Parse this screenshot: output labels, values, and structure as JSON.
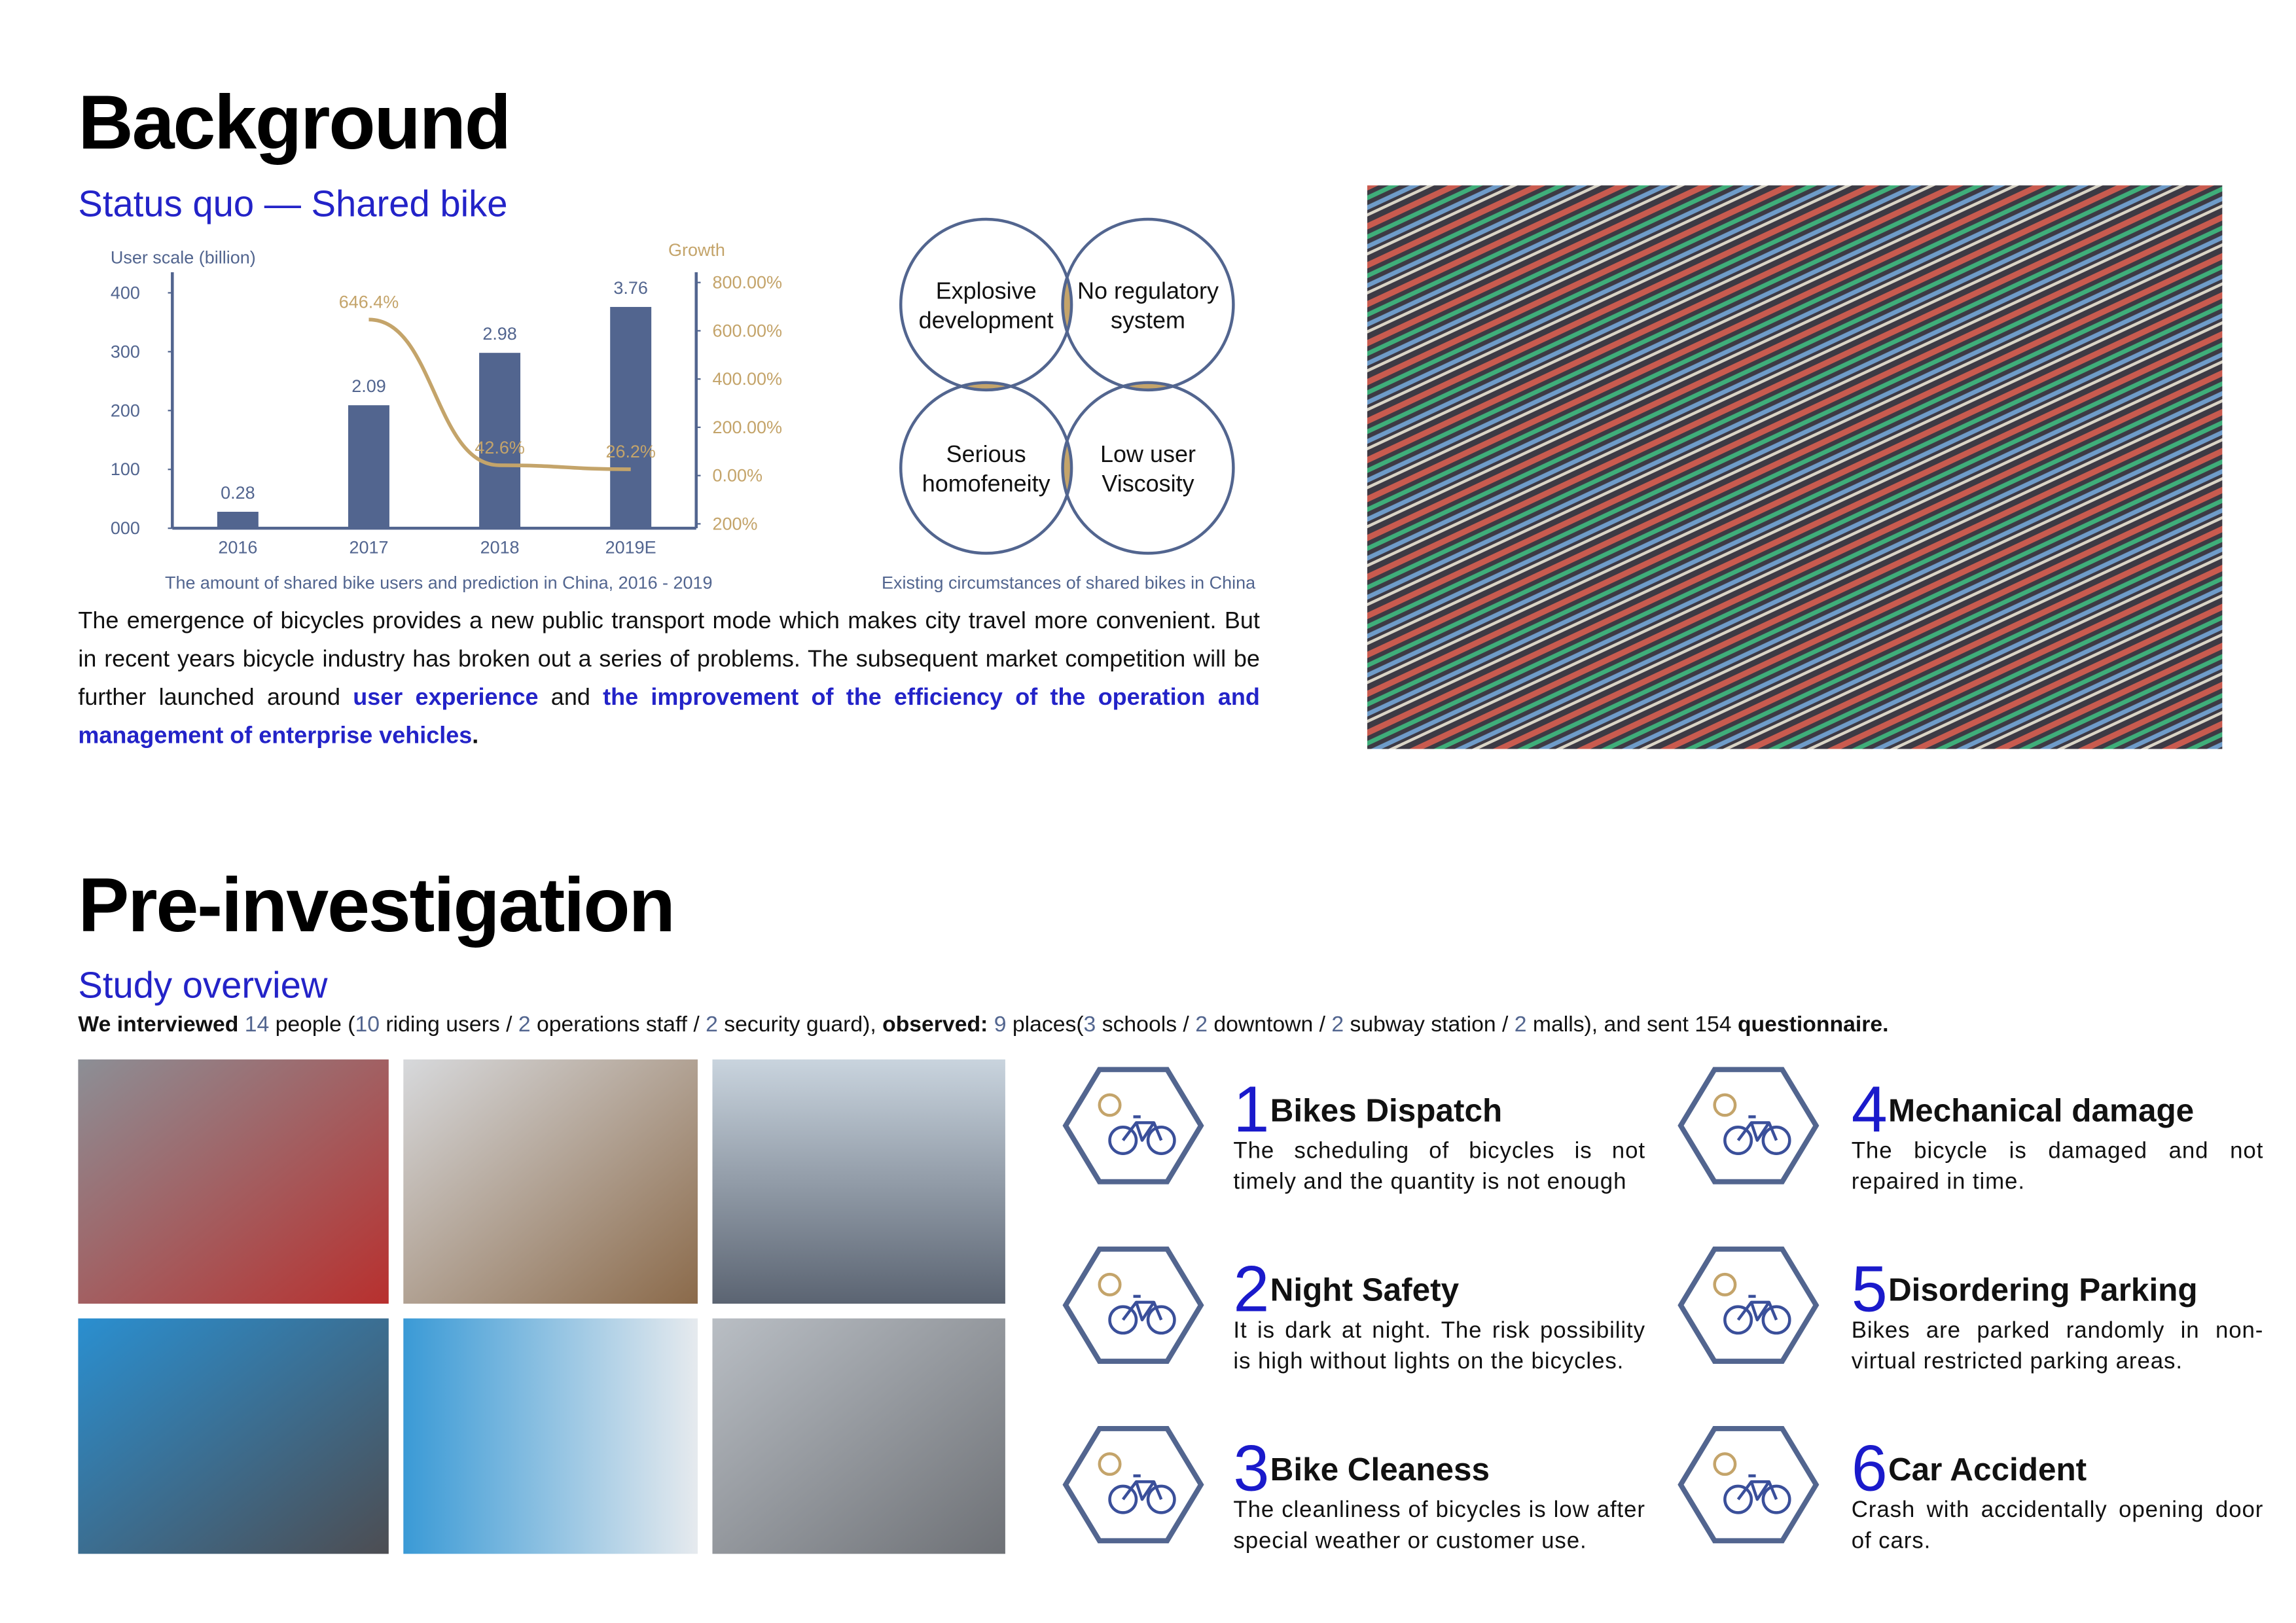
{
  "background": {
    "title": "Background",
    "subtitle": "Status quo — Shared bike",
    "chart": {
      "type": "bar",
      "y_label": "User scale (billion)",
      "y2_label": "Growth",
      "categories": [
        "2016",
        "2017",
        "2018",
        "2019E"
      ],
      "values": [
        28,
        209,
        298,
        376
      ],
      "value_labels": [
        "0.28",
        "2.09",
        "2.98",
        "3.76"
      ],
      "color": "#52658f",
      "ylim": [
        0,
        400
      ],
      "yticks": [
        {
          "value": 0,
          "label": "000"
        },
        100,
        200,
        300,
        400
      ],
      "line": {
        "axis": "y2",
        "color": "#c4a46a",
        "values": [
          null,
          646.4,
          42.6,
          26.2
        ],
        "value_labels": [
          null,
          "646.4%",
          "42.6%",
          "26.2%"
        ]
      },
      "y2lim": [
        -200,
        800
      ],
      "y2ticks": [
        {
          "value": -200,
          "label": "200%"
        },
        {
          "value": 0,
          "label": "0.00%"
        },
        {
          "value": 200,
          "label": "200.00%"
        },
        {
          "value": 400,
          "label": "400.00%"
        },
        {
          "value": 600,
          "label": "600.00%"
        },
        {
          "value": 800,
          "label": "800.00%"
        }
      ],
      "caption": "The amount of shared bike users and prediction in China, 2016 - 2019"
    },
    "venn": {
      "labels": [
        [
          "Explosive",
          "development"
        ],
        [
          "No regulatory",
          "system"
        ],
        [
          "Serious",
          "homofeneity"
        ],
        [
          "Low user",
          "Viscosity"
        ]
      ],
      "caption": "Existing circumstances of shared bikes in China"
    },
    "paragraph": [
      "The emergence of bicycles provides a new public transport mode which makes city travel more convenient. But in recent years bicycle industry has broken out a series of problems. The subsequent market competition will be further launched around",
      "user experience",
      "and",
      "the improvement of the efficiency of the operation and management of enterprise vehicles",
      "."
    ]
  },
  "pre_investigation": {
    "title": "Pre-investigation",
    "subtitle": "Study overview",
    "summary": [
      "We interviewed",
      "14",
      "people (",
      "10",
      "riding users /",
      "2",
      "operations staff /",
      "2",
      "security guard),",
      "observed:",
      "9",
      "places(",
      "3",
      "schools /",
      "2",
      "downtown /",
      "2",
      "subway station /",
      "2",
      "malls), and sent 154",
      "questionnaire."
    ],
    "issues": [
      {
        "number": 1,
        "title": "Bikes Dispatch",
        "text": "The scheduling of bicycles is not timely and the quantity is not enough"
      },
      {
        "number": 2,
        "title": "Night Safety",
        "text": "It is dark at night. The risk possibility is high without lights on the bicycles."
      },
      {
        "number": 3,
        "title": "Bike Cleaness",
        "text": "The cleanliness of bicycles is low after special weather or customer use."
      },
      {
        "number": 4,
        "title": "Mechanical damage",
        "text": "The bicycle is damaged and not repaired in time."
      },
      {
        "number": 5,
        "title": "Disordering Parking",
        "text": "Bikes are parked randomly in non-virtual restricted parking areas."
      },
      {
        "number": 6,
        "title": "Car Accident",
        "text": "Crash with accidentally opening door of cars."
      }
    ]
  }
}
